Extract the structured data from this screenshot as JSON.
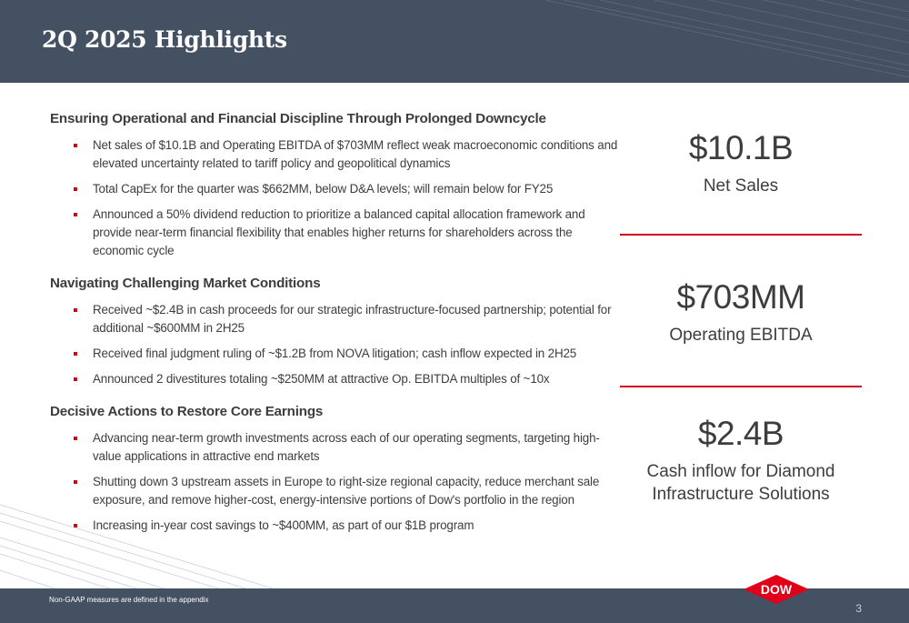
{
  "header": {
    "title": "2Q 2025 Highlights"
  },
  "sections": [
    {
      "heading": "Ensuring Operational and Financial Discipline Through Prolonged Downcycle",
      "bullets": [
        "Net sales of $10.1B and Operating EBITDA of $703MM reflect weak macroeconomic conditions and elevated uncertainty related to tariff policy and geopolitical dynamics",
        "Total CapEx for the quarter was $662MM, below D&A levels; will remain below for FY25",
        "Announced a 50% dividend reduction to prioritize a balanced capital allocation framework and provide near-term financial flexibility that enables higher returns for shareholders across the economic cycle"
      ]
    },
    {
      "heading": "Navigating Challenging Market Conditions",
      "bullets": [
        "Received ~$2.4B in cash proceeds for our strategic infrastructure-focused partnership; potential for additional ~$600MM in 2H25",
        "Received final judgment ruling of ~$1.2B from NOVA litigation; cash inflow expected in 2H25",
        "Announced 2 divestitures totaling ~$250MM at attractive Op. EBITDA multiples of ~10x"
      ]
    },
    {
      "heading": "Decisive Actions to Restore Core Earnings",
      "bullets": [
        "Advancing near-term growth investments across each of our operating segments, targeting high-value applications in attractive end markets",
        "Shutting down 3 upstream assets in Europe to right-size regional capacity, reduce merchant sale exposure, and remove higher-cost, energy-intensive portions of Dow's portfolio in the region",
        "Increasing in-year cost savings to ~$400MM, as part of our $1B program"
      ]
    }
  ],
  "metrics": [
    {
      "value": "$10.1B",
      "label": "Net Sales"
    },
    {
      "value": "$703MM",
      "label": "Operating EBITDA"
    },
    {
      "value": "$2.4B",
      "label": "Cash inflow for Diamond Infrastructure Solutions"
    }
  ],
  "footer": {
    "footnote": "Non-GAAP measures are defined in the appendix",
    "page_number": "3",
    "logo_text": "DOW"
  },
  "colors": {
    "header_bg": "#435163",
    "accent": "#d0021b",
    "text": "#3d3d3d"
  }
}
